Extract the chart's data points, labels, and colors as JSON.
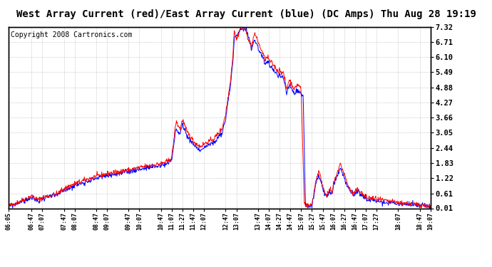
{
  "title": "West Array Current (red)/East Array Current (blue) (DC Amps) Thu Aug 28 19:19",
  "copyright": "Copyright 2008 Cartronics.com",
  "ylabel_right": [
    "7.32",
    "6.71",
    "6.10",
    "5.49",
    "4.88",
    "4.27",
    "3.66",
    "3.05",
    "2.44",
    "1.83",
    "1.22",
    "0.61",
    "0.01"
  ],
  "yticks": [
    7.32,
    6.71,
    6.1,
    5.49,
    4.88,
    4.27,
    3.66,
    3.05,
    2.44,
    1.83,
    1.22,
    0.61,
    0.01
  ],
  "ylim": [
    0.01,
    7.32
  ],
  "xtick_labels": [
    "06:05",
    "06:47",
    "07:07",
    "07:47",
    "08:07",
    "08:47",
    "09:07",
    "09:47",
    "10:07",
    "10:47",
    "11:07",
    "11:27",
    "11:47",
    "12:07",
    "12:47",
    "13:07",
    "13:47",
    "14:07",
    "14:27",
    "14:47",
    "15:07",
    "15:27",
    "15:47",
    "16:07",
    "16:27",
    "16:47",
    "17:07",
    "17:27",
    "18:07",
    "18:47",
    "19:07"
  ],
  "background_color": "#ffffff",
  "plot_bg_color": "#ffffff",
  "grid_color": "#aaaaaa",
  "line_red": "#ff0000",
  "line_blue": "#0000ff",
  "title_fontsize": 10,
  "copyright_fontsize": 7
}
